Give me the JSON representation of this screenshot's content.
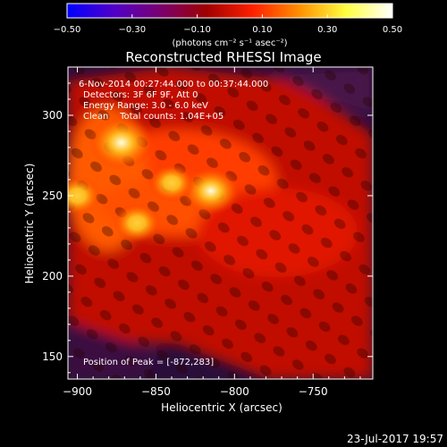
{
  "chart_data": {
    "type": "heatmap",
    "title": "Reconstructed RHESSI Image",
    "xlabel": "Heliocentric X (arcsec)",
    "ylabel": "Heliocentric Y (arcsec)",
    "xlim": [
      -906,
      -712
    ],
    "ylim": [
      136,
      330
    ],
    "x_ticks": [
      -900,
      -850,
      -800,
      -750
    ],
    "y_ticks": [
      150,
      200,
      250,
      300
    ],
    "x_tick_labels": [
      "−900",
      "−850",
      "−800",
      "−750"
    ],
    "y_tick_labels": [
      "150",
      "200",
      "250",
      "300"
    ],
    "colorbar": {
      "min": -0.5,
      "max": 0.5,
      "ticks": [
        -0.5,
        -0.3,
        -0.1,
        0.1,
        0.3,
        0.5
      ],
      "tick_labels": [
        "−0.50",
        "−0.30",
        "−0.10",
        "0.10",
        "0.30",
        "0.50"
      ],
      "label": "(photons cm⁻² s⁻¹ asec⁻²)",
      "colors": [
        "#0000ff",
        "#5000c8",
        "#7a0070",
        "#a00000",
        "#ff2000",
        "#ff9000",
        "#ffff40",
        "#ffffff"
      ]
    },
    "annotations": [
      "6-Nov-2014 00:27:44.000 to 00:37:44.000",
      "Detectors: 3F 6F 9F, Att 0",
      "Energy Range: 3.0 - 6.0 keV",
      "Clean    Total counts: 1.04E+05"
    ],
    "peak_label": "Position of Peak = [-872,283]",
    "sources": [
      {
        "x": -872,
        "y": 283,
        "intensity": 0.5
      },
      {
        "x": -815,
        "y": 253,
        "intensity": 0.42
      },
      {
        "x": -900,
        "y": 250,
        "intensity": 0.3
      },
      {
        "x": -862,
        "y": 233,
        "intensity": 0.3
      },
      {
        "x": -840,
        "y": 258,
        "intensity": 0.28
      }
    ]
  },
  "footer": {
    "timestamp": "23-Jul-2017 19:57"
  }
}
